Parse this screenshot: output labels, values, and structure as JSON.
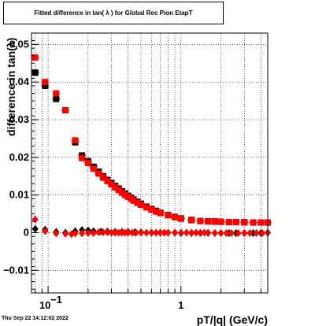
{
  "canvas": {
    "title": "Fitted difference in tan( λ ) for Global Rec Pion EtapT"
  },
  "footer": {
    "date": "Thu Sep 22 14:12:02 2022"
  },
  "colors": {
    "series_red": "#ff0000",
    "series_black": "#000000",
    "grid": "#000000",
    "background": "#ffffff"
  },
  "chart_data": {
    "type": "scatter",
    "title": "Fitted difference in tan( λ ) for Global Rec Pion EtapT",
    "xlabel": "pT/|q| (GeV/c)",
    "ylabel": "difference in tan(λ)",
    "xscale": "log",
    "xlim": [
      0.075,
      4.5
    ],
    "ylim": [
      -0.016,
      0.053
    ],
    "grid": true,
    "legend": "none",
    "x_ticks": [
      {
        "value": 0.1,
        "label": "10",
        "exp": "−1"
      },
      {
        "value": 1,
        "label": "1",
        "exp": ""
      }
    ],
    "y_ticks": [
      {
        "value": -0.01,
        "label": "−0.01"
      },
      {
        "value": 0,
        "label": "0"
      },
      {
        "value": 0.01,
        "label": "0.01"
      },
      {
        "value": 0.02,
        "label": "0.02"
      },
      {
        "value": 0.03,
        "label": "0.03"
      },
      {
        "value": 0.04,
        "label": "0.04"
      },
      {
        "value": 0.05,
        "label": "0.05"
      }
    ],
    "series": [
      {
        "marker": "square",
        "color": "#000000",
        "x": [
          0.08,
          0.095,
          0.115,
          0.135,
          0.16,
          0.18,
          0.2,
          0.22,
          0.24,
          0.26,
          0.28,
          0.3,
          0.32,
          0.34,
          0.36,
          0.38,
          0.4,
          0.42,
          0.44,
          0.47,
          0.5,
          0.55,
          0.6,
          0.65,
          0.7,
          0.8,
          0.9,
          1.0,
          1.2,
          1.4,
          1.6,
          1.8,
          2.0,
          2.3,
          2.6,
          3.0,
          3.5,
          4.0,
          4.5
        ],
        "y": [
          0.0425,
          0.039,
          0.0355,
          0.0325,
          0.024,
          0.0205,
          0.019,
          0.0175,
          0.0162,
          0.015,
          0.014,
          0.0132,
          0.0124,
          0.0117,
          0.011,
          0.0104,
          0.0098,
          0.0093,
          0.0088,
          0.0082,
          0.0077,
          0.0069,
          0.0063,
          0.0058,
          0.0053,
          0.0047,
          0.0042,
          0.0038,
          0.0034,
          0.0031,
          0.003,
          0.003,
          0.0029,
          0.0028,
          0.0028,
          0.0028,
          0.0027,
          0.0027,
          0.0027
        ]
      },
      {
        "marker": "square",
        "color": "#ff0000",
        "x": [
          0.08,
          0.095,
          0.115,
          0.135,
          0.16,
          0.18,
          0.2,
          0.22,
          0.24,
          0.26,
          0.28,
          0.3,
          0.32,
          0.34,
          0.36,
          0.38,
          0.4,
          0.42,
          0.44,
          0.47,
          0.5,
          0.55,
          0.6,
          0.65,
          0.7,
          0.8,
          0.9,
          1.0,
          1.2,
          1.4,
          1.6,
          1.8,
          2.0,
          2.3,
          2.6,
          3.0,
          3.5,
          4.0,
          4.5
        ],
        "y": [
          0.0465,
          0.04,
          0.037,
          0.0325,
          0.0245,
          0.0198,
          0.0185,
          0.017,
          0.0157,
          0.0146,
          0.0137,
          0.0128,
          0.012,
          0.0113,
          0.0106,
          0.01,
          0.0095,
          0.009,
          0.0085,
          0.0079,
          0.0074,
          0.0067,
          0.0061,
          0.0056,
          0.0052,
          0.0046,
          0.0041,
          0.0037,
          0.0033,
          0.0031,
          0.003,
          0.0029,
          0.0029,
          0.0028,
          0.0028,
          0.0027,
          0.0027,
          0.0027,
          0.0027
        ]
      },
      {
        "marker": "diamond",
        "color": "#000000",
        "x": [
          0.08,
          0.095,
          0.115,
          0.135,
          0.16,
          0.18,
          0.2,
          0.22,
          0.25,
          0.28,
          0.32,
          0.36,
          0.4,
          0.45,
          0.5,
          0.6,
          0.7,
          0.8,
          0.9,
          1.0,
          1.2,
          1.4,
          1.6,
          1.8,
          2.0,
          2.3,
          2.6,
          3.0,
          3.5,
          4.0,
          4.5
        ],
        "y": [
          0.001,
          0.0008,
          0.0002,
          0.0,
          0.0004,
          0.0007,
          0.0006,
          0.0004,
          0.0003,
          0.0003,
          0.0002,
          0.0002,
          0.0002,
          0.0001,
          0.0001,
          0.0,
          0.0,
          0.0,
          0.0,
          -0.0001,
          -0.0001,
          -0.0001,
          -0.0001,
          -0.0001,
          -0.0001,
          -0.0001,
          -0.0001,
          -0.0001,
          -0.0001,
          -0.0001,
          0.0
        ]
      },
      {
        "marker": "diamond",
        "color": "#ff0000",
        "x": [
          0.08,
          0.095,
          0.115,
          0.135,
          0.15,
          0.16,
          0.18,
          0.2,
          0.22,
          0.24,
          0.26,
          0.28,
          0.3,
          0.32,
          0.34,
          0.36,
          0.38,
          0.4,
          0.43,
          0.46,
          0.5,
          0.55,
          0.6,
          0.65,
          0.7,
          0.75,
          0.8,
          0.9,
          1.0,
          1.1,
          1.2,
          1.3,
          1.4,
          1.5,
          1.6,
          1.8,
          2.0,
          2.2,
          2.4,
          2.7,
          3.0,
          3.3,
          3.7,
          4.1,
          4.5
        ],
        "y": [
          0.0035,
          0.0004,
          -0.0002,
          -0.0003,
          -0.0004,
          -0.0002,
          -0.0002,
          -0.0001,
          -0.0001,
          0.0001,
          0.0001,
          0.0001,
          0.0,
          0.0,
          0.0,
          0.0,
          0.0,
          0.0,
          0.0,
          0.0,
          0.0,
          0.0,
          0.0,
          0.0,
          0.0,
          0.0,
          0.0,
          0.0,
          0.0,
          0.0,
          0.0,
          0.0,
          0.0,
          0.0,
          0.0,
          -0.0001,
          -0.0001,
          -0.0001,
          -0.0001,
          -0.0001,
          -0.0001,
          -0.0001,
          -0.0001,
          -0.0001,
          0.0
        ]
      }
    ]
  }
}
